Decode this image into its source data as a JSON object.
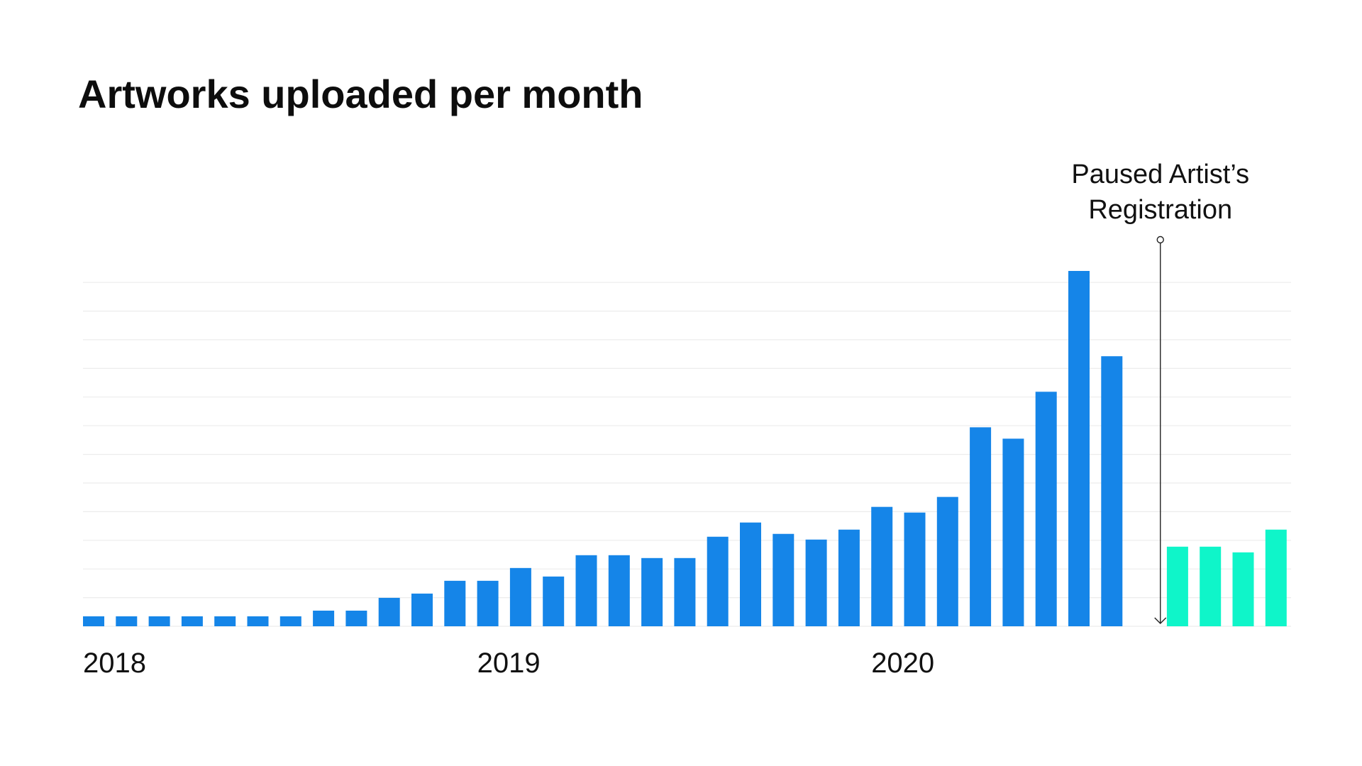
{
  "chart_data": {
    "type": "bar",
    "title": "Artworks uploaded per month",
    "xlabel": "",
    "ylabel": "",
    "ylim": [
      0,
      25
    ],
    "grid": true,
    "x_tick_labels": [
      {
        "label": "2018",
        "index": 0
      },
      {
        "label": "2019",
        "index": 12
      },
      {
        "label": "2020",
        "index": 24
      }
    ],
    "series": [
      {
        "color": "#1585E8",
        "values": [
          0.7,
          0.7,
          0.7,
          0.7,
          0.7,
          0.7,
          0.7,
          1.1,
          1.1,
          2.0,
          2.3,
          3.2,
          3.2,
          4.1,
          3.5,
          5.0,
          5.0,
          4.8,
          4.8,
          6.3,
          7.3,
          6.5,
          6.1,
          6.8,
          8.4,
          8.0,
          9.1,
          14.0,
          13.2,
          16.5,
          25.0,
          19.0
        ],
        "start_index": 0
      },
      {
        "color": "#0FF5C9",
        "values": [
          5.6,
          5.6,
          5.2,
          6.8
        ],
        "start_index": 33
      }
    ],
    "annotations": [
      {
        "text_lines": [
          "Paused Artist’s",
          "Registration"
        ],
        "index": 32.5
      }
    ]
  }
}
